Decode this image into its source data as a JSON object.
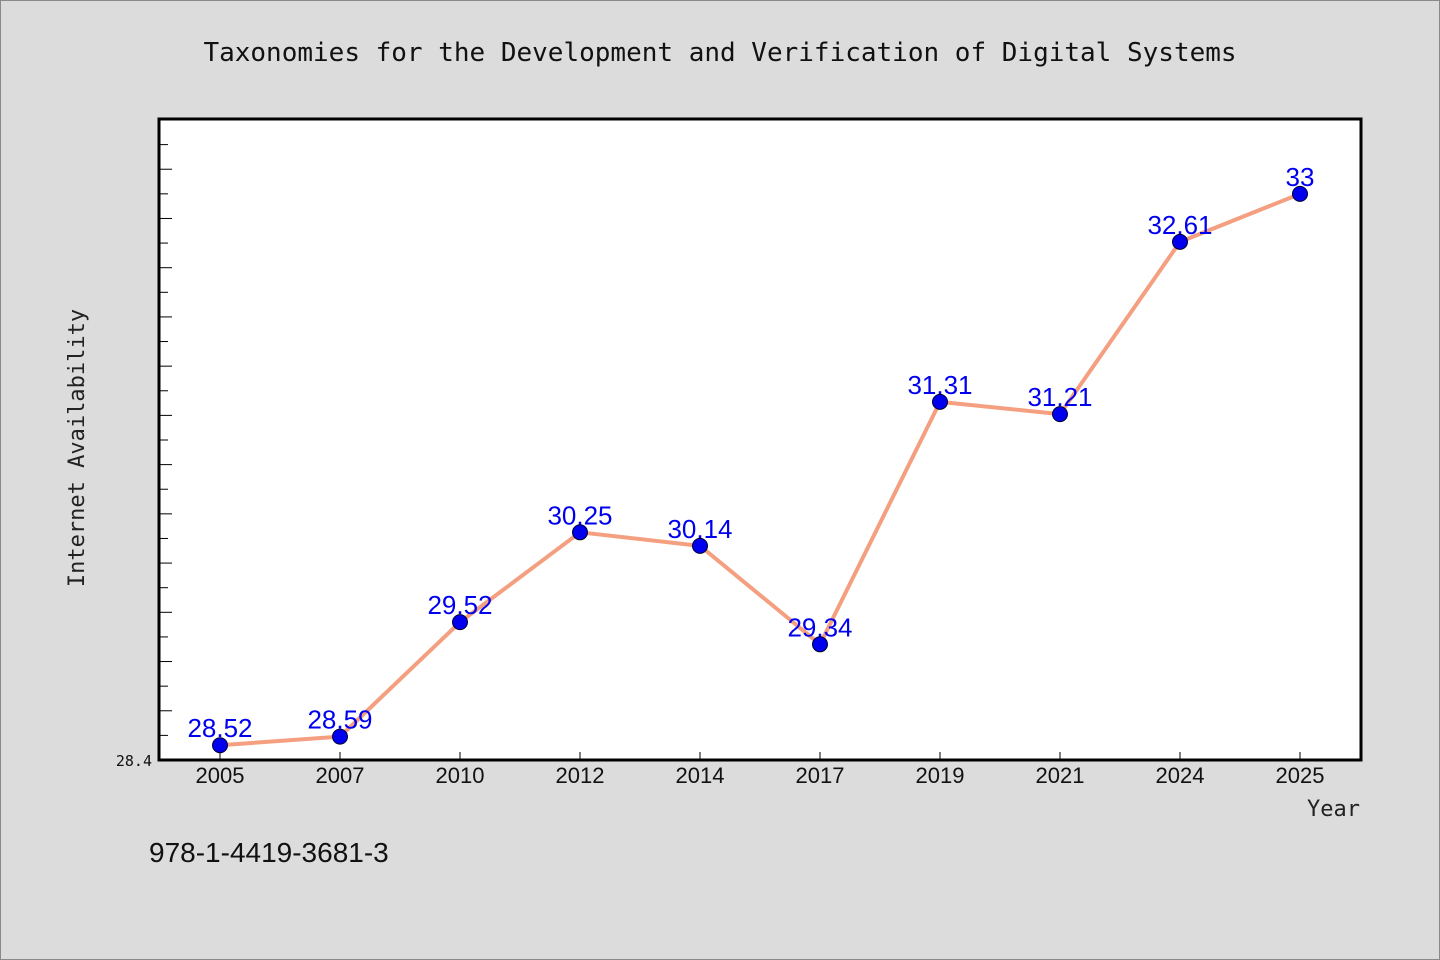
{
  "chart_data": {
    "type": "line",
    "title": "Taxonomies for the Development and Verification of Digital Systems",
    "xlabel": "Year",
    "ylabel": "Internet Availability",
    "categories": [
      "2005",
      "2007",
      "2010",
      "2012",
      "2014",
      "2017",
      "2019",
      "2021",
      "2024",
      "2025"
    ],
    "values": [
      28.52,
      28.59,
      29.52,
      30.25,
      30.14,
      29.34,
      31.31,
      31.21,
      32.61,
      33
    ],
    "data_labels": [
      "28.52",
      "28.59",
      "29.52",
      "30.25",
      "30.14",
      "29.34",
      "31.31",
      "31.21",
      "32.61",
      "33"
    ],
    "ylim": [
      28.4,
      33.6
    ],
    "y_min_label": "28.4",
    "grid": false,
    "line_color": "#f4a080",
    "marker_color": "#0000ee",
    "label_color": "#0000ee"
  },
  "footer": {
    "isbn": "978-1-4419-3681-3"
  }
}
